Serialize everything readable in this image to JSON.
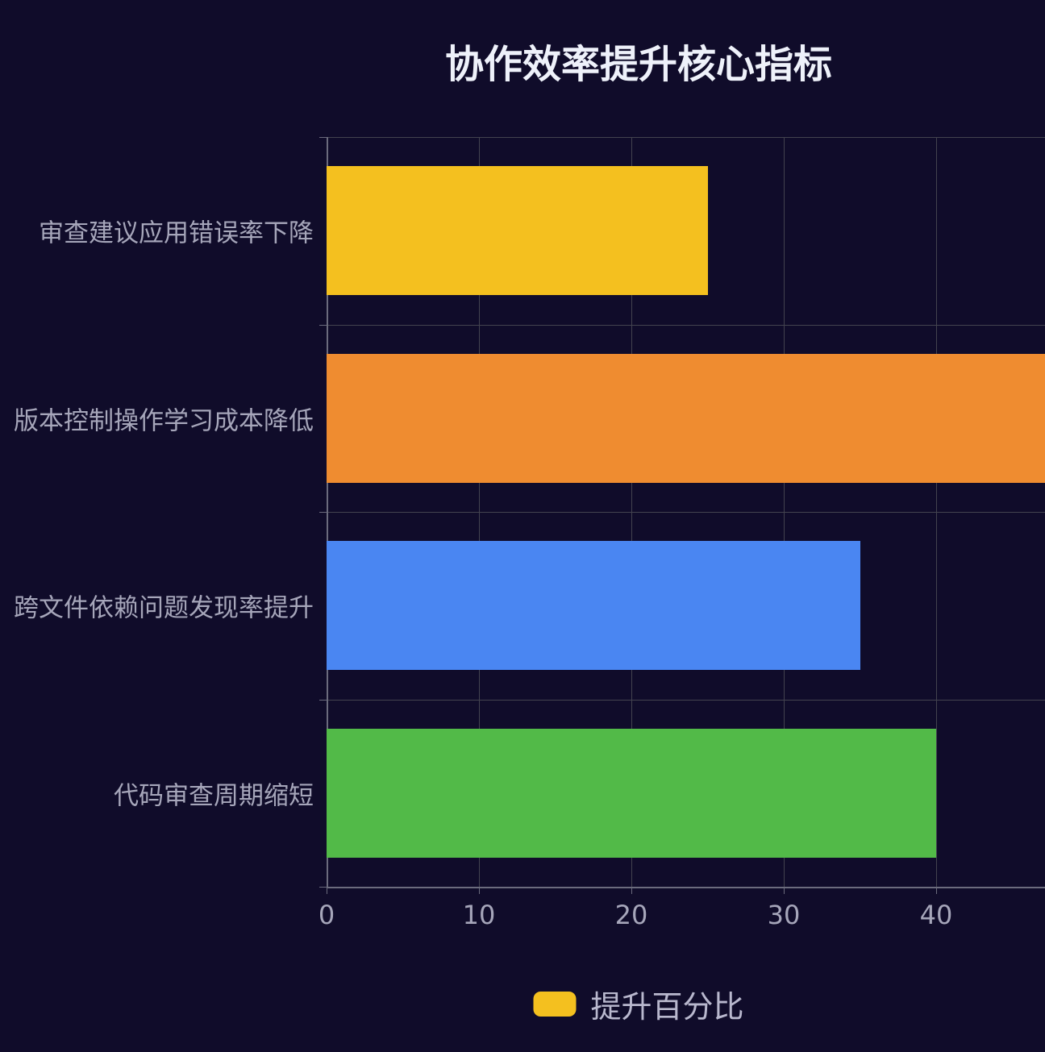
{
  "page": {
    "background_color": "#100c2a"
  },
  "chart_data": {
    "type": "bar",
    "orientation": "horizontal",
    "title": "协作效率提升核心指标",
    "categories": [
      "审查建议应用错误率下降",
      "版本控制操作学习成本降低",
      "跨文件依赖问题发现率提升",
      "代码审查周期缩短"
    ],
    "values": [
      25,
      48,
      35,
      40
    ],
    "bar_colors": [
      "#f4c01f",
      "#ef8c30",
      "#4a86f2",
      "#52ba48"
    ],
    "x_ticks": [
      0,
      10,
      20,
      30,
      40
    ],
    "xlim": [
      0,
      48
    ],
    "xlabel": "",
    "ylabel": "",
    "grid": true,
    "note": "rightmost bar extends beyond visible plot edge",
    "colors": {
      "title": "#eef1fa",
      "axis_label": "#a6a6ba",
      "grid_line": "#43434f",
      "axis_line": "#6b6b7d"
    },
    "legend": {
      "position": "bottom-center",
      "label": "提升百分比",
      "swatch_color": "#f4c01f"
    }
  }
}
